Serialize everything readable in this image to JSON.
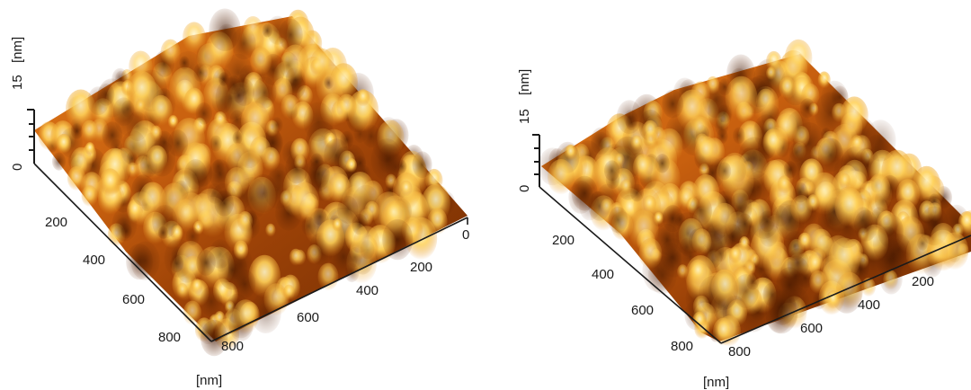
{
  "panels": [
    {
      "z_axis": {
        "value_labels": [
          "15",
          "0"
        ],
        "unit": "[nm]"
      },
      "left_axis_ticks": [
        "200",
        "400",
        "600",
        "800"
      ],
      "right_axis_ticks": [
        "800",
        "600",
        "400",
        "200",
        "0"
      ],
      "bottom_unit": "[nm]"
    },
    {
      "z_axis": {
        "value_labels": [
          "15",
          "0"
        ],
        "unit": "[nm]"
      },
      "left_axis_ticks": [
        "200",
        "400",
        "600",
        "800"
      ],
      "right_axis_ticks": [
        "800",
        "600",
        "400",
        "200"
      ],
      "bottom_unit": "[nm]"
    }
  ],
  "colors": {
    "surface_dark": "#5a2200",
    "surface_mid": "#c96a10",
    "surface_light": "#ffe08a",
    "axis": "#1a1a1a"
  }
}
